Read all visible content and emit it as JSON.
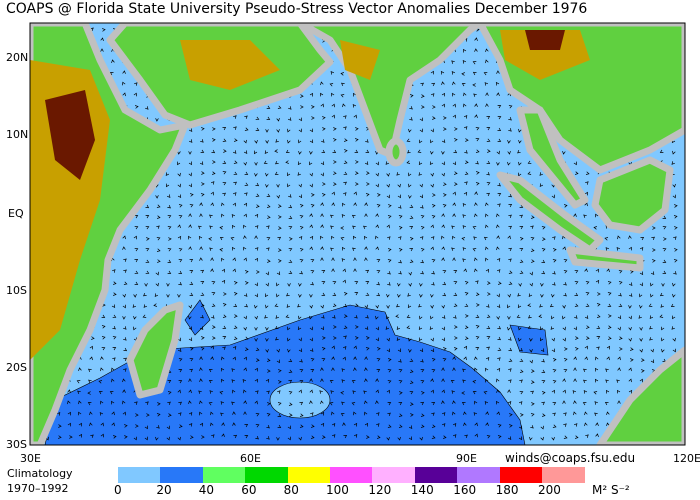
{
  "title": "COAPS @ Florida State University Pseudo-Stress Vector Anomalies  December 1976",
  "lat_labels": [
    "20N",
    "10N",
    "EQ",
    "10S",
    "20S",
    "30S"
  ],
  "lon_labels": [
    "30E",
    "60E",
    "90E",
    "120E"
  ],
  "credit": "winds@coaps.fsu.edu",
  "climatology": {
    "line1": "Climatology",
    "line2": "1970–1992"
  },
  "legend": {
    "values": [
      "0",
      "20",
      "40",
      "60",
      "80",
      "100",
      "120",
      "140",
      "160",
      "180",
      "200"
    ],
    "colors": [
      "#80c8ff",
      "#2878f8",
      "#60ff60",
      "#00d800",
      "#ffff00",
      "#ff50ff",
      "#ffb0ff",
      "#580098",
      "#b078ff",
      "#ff0000",
      "#ff9898"
    ],
    "units": "M² S⁻²"
  },
  "colors": {
    "ocean": "#80c8ff",
    "anomaly_region": "#2878f8",
    "land_low": "#60d040",
    "land_mid": "#c8a000",
    "land_high": "#6a1800",
    "coast": "#c0c0c0"
  }
}
